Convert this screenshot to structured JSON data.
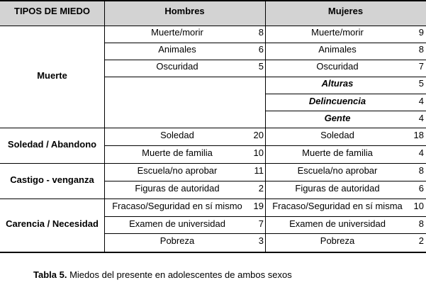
{
  "header": {
    "col1": "TIPOS DE MIEDO",
    "col2": "Hombres",
    "col3": "Mujeres"
  },
  "groups": [
    {
      "name": "Muerte"
    },
    {
      "name": "Soledad / Abandono"
    },
    {
      "name": "Castigo - venganza"
    },
    {
      "name": "Carencia / Necesidad"
    }
  ],
  "rows": [
    {
      "men_label": "Muerte/morir",
      "men_value": "8",
      "women_label": "Muerte/morir",
      "women_value": "9"
    },
    {
      "men_label": "Animales",
      "men_value": "6",
      "women_label": "Animales",
      "women_value": "8"
    },
    {
      "men_label": "Oscuridad",
      "men_value": "5",
      "women_label": "Oscuridad",
      "women_value": "7"
    },
    {
      "men_label": "",
      "men_value": "",
      "women_label": "Alturas",
      "women_value": "5"
    },
    {
      "men_label": "",
      "men_value": "",
      "women_label": "Delincuencia",
      "women_value": "4"
    },
    {
      "men_label": "",
      "men_value": "",
      "women_label": "Gente",
      "women_value": "4"
    },
    {
      "men_label": "Soledad",
      "men_value": "20",
      "women_label": "Soledad",
      "women_value": "18"
    },
    {
      "men_label": "Muerte de familia",
      "men_value": "10",
      "women_label": "Muerte de familia",
      "women_value": "4"
    },
    {
      "men_label": "Escuela/no aprobar",
      "men_value": "11",
      "women_label": "Escuela/no aprobar",
      "women_value": "8"
    },
    {
      "men_label": "Figuras de autoridad",
      "men_value": "2",
      "women_label": "Figuras de autoridad",
      "women_value": "6"
    },
    {
      "men_label": "Fracaso/Seguridad en sí mismo",
      "men_value": "19",
      "women_label": "Fracaso/Seguridad en sí misma",
      "women_value": "10"
    },
    {
      "men_label": "Examen de universidad",
      "men_value": "7",
      "women_label": "Examen de universidad",
      "women_value": "8"
    },
    {
      "men_label": "Pobreza",
      "men_value": "3",
      "women_label": "Pobreza",
      "women_value": "2"
    }
  ],
  "caption": {
    "label": "Tabla 5.",
    "text": " Miedos del presente en adolescentes de ambos sexos"
  }
}
